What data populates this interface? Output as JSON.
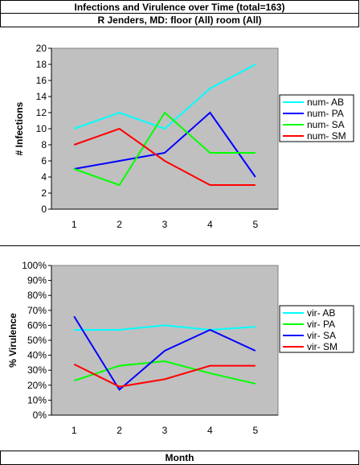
{
  "header": {
    "title": "Infections and Virulence over Time (total=163)",
    "subtitle": "R Jenders, MD: floor (All) room (All)"
  },
  "footer": {
    "xlabel": "Month"
  },
  "chart_data": [
    {
      "type": "line",
      "ylabel": "# Infections",
      "x": [
        1,
        2,
        3,
        4,
        5
      ],
      "ylim": [
        0,
        20
      ],
      "yticks": [
        "0",
        "2",
        "4",
        "6",
        "8",
        "10",
        "12",
        "14",
        "16",
        "18",
        "20"
      ],
      "xticks": [
        "1",
        "2",
        "3",
        "4",
        "5"
      ],
      "grid": false,
      "legend": "right",
      "series": [
        {
          "name": "num- AB",
          "color": "#00ffff",
          "values": [
            10,
            12,
            10,
            15,
            18
          ]
        },
        {
          "name": "num- PA",
          "color": "#0000ff",
          "values": [
            5,
            6,
            7,
            12,
            4
          ]
        },
        {
          "name": "num- SA",
          "color": "#00ff00",
          "values": [
            5,
            3,
            12,
            7,
            7
          ]
        },
        {
          "name": "num- SM",
          "color": "#ff0000",
          "values": [
            8,
            10,
            6,
            3,
            3
          ]
        }
      ]
    },
    {
      "type": "line",
      "ylabel": "% Virulence",
      "x": [
        1,
        2,
        3,
        4,
        5
      ],
      "ylim": [
        0,
        100
      ],
      "yticks": [
        "0%",
        "10%",
        "20%",
        "30%",
        "40%",
        "50%",
        "60%",
        "70%",
        "80%",
        "90%",
        "100%"
      ],
      "xticks": [
        "1",
        "2",
        "3",
        "4",
        "5"
      ],
      "grid": false,
      "legend": "right",
      "series": [
        {
          "name": "vir- AB",
          "color": "#00ffff",
          "values": [
            57,
            57,
            60,
            57,
            59
          ]
        },
        {
          "name": "vir- PA",
          "color": "#00ff00",
          "values": [
            23,
            33,
            36,
            28,
            21
          ]
        },
        {
          "name": "vir- SA",
          "color": "#0000ff",
          "values": [
            66,
            17,
            43,
            57,
            43
          ]
        },
        {
          "name": "vir- SM",
          "color": "#ff0000",
          "values": [
            34,
            19,
            24,
            33,
            33
          ]
        }
      ]
    }
  ]
}
